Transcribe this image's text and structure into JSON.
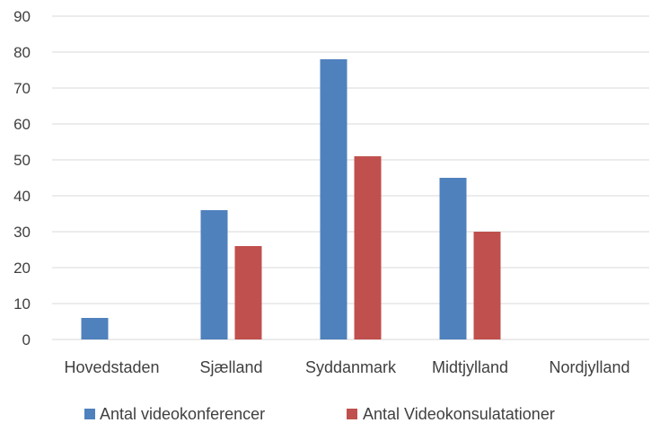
{
  "chart_data": {
    "type": "bar",
    "categories": [
      "Hovedstaden",
      "Sjælland",
      "Syddanmark",
      "Midtjylland",
      "Nordjylland"
    ],
    "series": [
      {
        "name": "Antal videokonferencer",
        "color": "#4f81bd",
        "values": [
          6,
          36,
          78,
          45,
          0
        ]
      },
      {
        "name": "Antal Videokonsulatationer",
        "color": "#c0504d",
        "values": [
          0,
          26,
          51,
          30,
          0
        ]
      }
    ],
    "title": "",
    "xlabel": "",
    "ylabel": "",
    "ylim": [
      0,
      90
    ],
    "yticks": [
      "0",
      "10",
      "20",
      "30",
      "40",
      "50",
      "60",
      "70",
      "80",
      "90"
    ],
    "grid": true,
    "legend": "bottom"
  }
}
